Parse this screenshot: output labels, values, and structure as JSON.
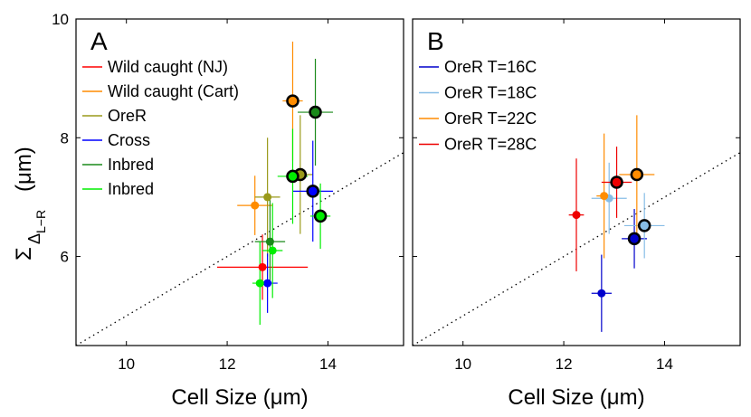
{
  "ylabel": {
    "sigma": "Σ",
    "delta": "Δ",
    "sub": "L−R",
    "unit": "(μm)"
  },
  "chart_data": [
    {
      "type": "scatter",
      "title": "A",
      "xlabel": "Cell Size (μm)",
      "ylabel": "Σ Δ L−R (μm)",
      "xlim": [
        9,
        15.5
      ],
      "ylim": [
        4.5,
        10
      ],
      "xticks": [
        "10",
        "12",
        "14"
      ],
      "yticks": [
        "6",
        "8",
        "10"
      ],
      "reference_line": {
        "style": "dotted",
        "x": [
          9,
          15.5
        ],
        "y": [
          4.5,
          7.75
        ]
      },
      "legend_position": "top-left",
      "series": [
        {
          "name": "Wild caught (NJ)",
          "color": "#ff0000",
          "points": [
            {
              "x": 12.7,
              "y": 5.82,
              "xerr": 0.9,
              "yerr": 0.55,
              "outlined": false
            }
          ]
        },
        {
          "name": "Wild caught (Cart)",
          "color": "#ff8c00",
          "points": [
            {
              "x": 12.55,
              "y": 6.86,
              "xerr": 0.35,
              "yerr": 0.5,
              "outlined": false
            },
            {
              "x": 13.3,
              "y": 8.62,
              "xerr": 0.2,
              "yerr": 1.0,
              "outlined": true
            }
          ]
        },
        {
          "name": "OreR",
          "color": "#9a9a1a",
          "points": [
            {
              "x": 12.8,
              "y": 7.0,
              "xerr": 0.25,
              "yerr": 1.0,
              "outlined": false
            },
            {
              "x": 13.45,
              "y": 7.38,
              "xerr": 0.25,
              "yerr": 1.0,
              "outlined": true
            }
          ]
        },
        {
          "name": "Cross",
          "color": "#0000ff",
          "points": [
            {
              "x": 12.8,
              "y": 5.55,
              "xerr": 0.2,
              "yerr": 0.5,
              "outlined": false
            },
            {
              "x": 13.7,
              "y": 7.1,
              "xerr": 0.4,
              "yerr": 0.85,
              "outlined": true
            }
          ]
        },
        {
          "name": "Inbred",
          "color": "#1a8a1a",
          "points": [
            {
              "x": 12.85,
              "y": 6.25,
              "xerr": 0.3,
              "yerr": 0.7,
              "outlined": false
            },
            {
              "x": 13.75,
              "y": 8.43,
              "xerr": 0.35,
              "yerr": 0.9,
              "outlined": true
            }
          ]
        },
        {
          "name": "Inbred",
          "color": "#00ee00",
          "points": [
            {
              "x": 12.9,
              "y": 6.1,
              "xerr": 0.2,
              "yerr": 0.8,
              "outlined": false
            },
            {
              "x": 12.65,
              "y": 5.55,
              "xerr": 0.15,
              "yerr": 0.7,
              "outlined": false
            },
            {
              "x": 13.3,
              "y": 7.35,
              "xerr": 0.3,
              "yerr": 0.8,
              "outlined": true
            },
            {
              "x": 13.85,
              "y": 6.68,
              "xerr": 0.2,
              "yerr": 0.55,
              "outlined": true
            }
          ]
        }
      ]
    },
    {
      "type": "scatter",
      "title": "B",
      "xlabel": "Cell Size (μm)",
      "ylabel": "",
      "xlim": [
        9,
        15.5
      ],
      "ylim": [
        4.5,
        10
      ],
      "xticks": [
        "10",
        "12",
        "14"
      ],
      "yticks": [],
      "reference_line": {
        "style": "dotted",
        "x": [
          9,
          15.5
        ],
        "y": [
          4.5,
          7.75
        ]
      },
      "legend_position": "top-left",
      "series": [
        {
          "name": "OreR T=16C",
          "color": "#0000cc",
          "points": [
            {
              "x": 12.75,
              "y": 5.38,
              "xerr": 0.2,
              "yerr": 0.65,
              "outlined": false
            },
            {
              "x": 13.4,
              "y": 6.3,
              "xerr": 0.25,
              "yerr": 0.5,
              "outlined": true
            }
          ]
        },
        {
          "name": "OreR T=18C",
          "color": "#87bde6",
          "points": [
            {
              "x": 12.9,
              "y": 6.98,
              "xerr": 0.35,
              "yerr": 0.6,
              "outlined": false
            },
            {
              "x": 13.6,
              "y": 6.52,
              "xerr": 0.4,
              "yerr": 0.55,
              "outlined": true
            }
          ]
        },
        {
          "name": "OreR T=22C",
          "color": "#ff8c00",
          "points": [
            {
              "x": 12.8,
              "y": 7.02,
              "xerr": 0.15,
              "yerr": 1.05,
              "outlined": false
            },
            {
              "x": 13.45,
              "y": 7.38,
              "xerr": 0.35,
              "yerr": 1.0,
              "outlined": true
            }
          ]
        },
        {
          "name": "OreR T=28C",
          "color": "#ee0000",
          "points": [
            {
              "x": 12.25,
              "y": 6.7,
              "xerr": 0.15,
              "yerr": 0.95,
              "outlined": false
            },
            {
              "x": 13.05,
              "y": 7.25,
              "xerr": 0.3,
              "yerr": 0.6,
              "outlined": true
            }
          ]
        }
      ]
    }
  ]
}
